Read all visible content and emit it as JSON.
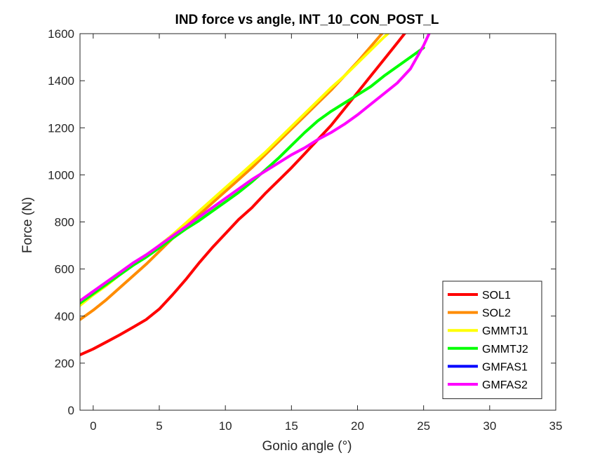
{
  "chart_data": {
    "type": "line",
    "title": "IND force vs angle, INT_10_CON_POST_L",
    "xlabel": "Gonio angle (°)",
    "ylabel": "Force (N)",
    "xlim": [
      -1,
      35
    ],
    "ylim": [
      0,
      1600
    ],
    "xticks": [
      0,
      5,
      10,
      15,
      20,
      25,
      30,
      35
    ],
    "yticks": [
      0,
      200,
      400,
      600,
      800,
      1000,
      1200,
      1400,
      1600
    ],
    "grid": false,
    "legend_position": "bottom-right",
    "series": [
      {
        "name": "SOL1",
        "color": "#ff0000",
        "x": [
          -1,
          0,
          1,
          2,
          3,
          4,
          5,
          6,
          7,
          8,
          9,
          10,
          11,
          12,
          13,
          14,
          15,
          16,
          17,
          18,
          19,
          20,
          21,
          22,
          23,
          23.7
        ],
        "y": [
          235,
          260,
          290,
          320,
          352,
          385,
          430,
          490,
          555,
          625,
          690,
          750,
          810,
          860,
          920,
          975,
          1030,
          1090,
          1150,
          1210,
          1280,
          1350,
          1420,
          1490,
          1560,
          1610
        ]
      },
      {
        "name": "SOL2",
        "color": "#ff8c00",
        "x": [
          -1,
          0,
          1,
          2,
          3,
          4,
          5,
          6,
          7,
          8,
          9,
          10,
          11,
          12,
          13,
          14,
          15,
          16,
          17,
          18,
          19,
          20,
          21,
          22
        ],
        "y": [
          385,
          425,
          470,
          520,
          570,
          620,
          675,
          730,
          780,
          830,
          880,
          930,
          980,
          1030,
          1085,
          1140,
          1195,
          1250,
          1305,
          1360,
          1420,
          1480,
          1545,
          1610
        ]
      },
      {
        "name": "GMMTJ1",
        "color": "#ffff00",
        "x": [
          -1,
          0,
          1,
          2,
          3,
          4,
          5,
          6,
          7,
          8,
          9,
          10,
          11,
          12,
          13,
          14,
          15,
          16,
          17,
          18,
          19,
          20,
          21,
          22,
          22.5
        ],
        "y": [
          445,
          490,
          530,
          575,
          615,
          655,
          700,
          745,
          795,
          845,
          895,
          945,
          995,
          1045,
          1095,
          1150,
          1205,
          1260,
          1315,
          1370,
          1420,
          1475,
          1530,
          1585,
          1610
        ]
      },
      {
        "name": "GMMTJ2",
        "color": "#00ff00",
        "x": [
          -1,
          0,
          1,
          2,
          3,
          4,
          5,
          6,
          7,
          8,
          9,
          10,
          11,
          12,
          13,
          14,
          15,
          16,
          17,
          18,
          19,
          20,
          21,
          22,
          23,
          24,
          25
        ],
        "y": [
          455,
          495,
          535,
          575,
          615,
          650,
          690,
          730,
          770,
          805,
          845,
          885,
          925,
          970,
          1020,
          1070,
          1125,
          1180,
          1230,
          1270,
          1305,
          1340,
          1375,
          1420,
          1460,
          1500,
          1540
        ]
      },
      {
        "name": "GMFAS1",
        "color": "#0000ff",
        "x": [],
        "y": []
      },
      {
        "name": "GMFAS2",
        "color": "#ff00ff",
        "x": [
          -1,
          0,
          1,
          2,
          3,
          4,
          5,
          6,
          7,
          8,
          9,
          10,
          11,
          12,
          13,
          14,
          15,
          16,
          17,
          18,
          19,
          20,
          21,
          22,
          23,
          24,
          25,
          25.5
        ],
        "y": [
          465,
          505,
          545,
          585,
          625,
          660,
          700,
          740,
          780,
          820,
          860,
          900,
          940,
          980,
          1015,
          1050,
          1085,
          1115,
          1150,
          1180,
          1215,
          1255,
          1300,
          1345,
          1390,
          1450,
          1550,
          1610
        ]
      }
    ]
  }
}
